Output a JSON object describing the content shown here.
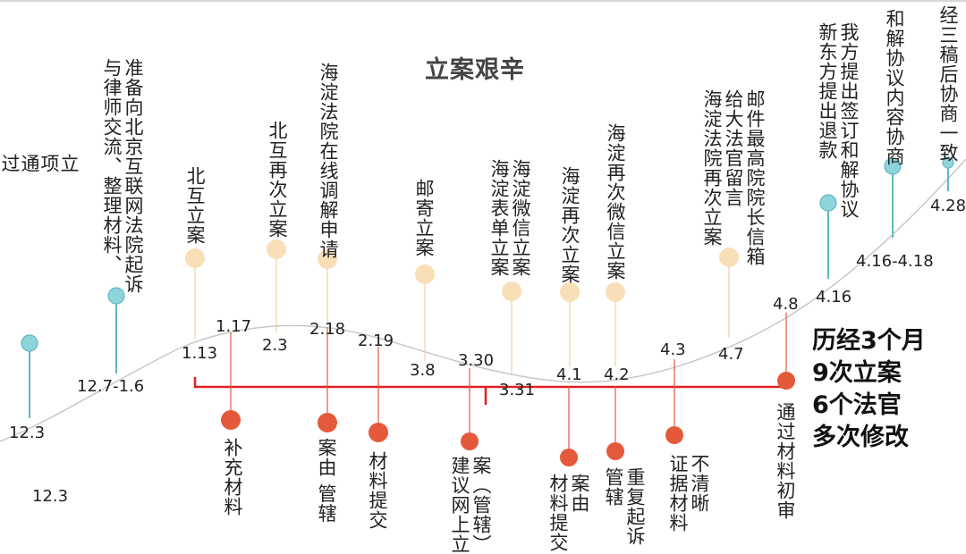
{
  "title": "立案艰辛",
  "summary": [
    "历经3个月",
    "9次立案",
    "6个法官",
    "多次修改"
  ],
  "colors": {
    "teal": "#8ed4db",
    "teal_line": "#5fb8c2",
    "beige": "#f8dfb8",
    "beige_line": "#f2cfa0",
    "orange": "#e5593b",
    "orange_line": "#e05a3f",
    "curve": "#c8c8c8",
    "bracket": "#e02020"
  },
  "top_events": [
    {
      "text": "立\n项\n通\n过",
      "color": "teal"
    },
    {
      "text": "准备向北京互联网法院起诉\n与律师交流、整理材料、",
      "color": "teal"
    },
    {
      "text": "北互立案",
      "color": "beige"
    },
    {
      "text": "北互再次立案",
      "color": "beige"
    },
    {
      "text": "海淀法院在线调解申请",
      "color": "beige"
    },
    {
      "text": "邮寄立案",
      "color": "beige"
    },
    {
      "text": "海淀微信立案\n海淀表单立案",
      "color": "beige"
    },
    {
      "text": "海淀再次立案",
      "color": "beige"
    },
    {
      "text": "海淀再次微信立案",
      "color": "beige"
    },
    {
      "text": "邮件最高院院长信箱\n给大法官留言\n海淀法院再次立案",
      "color": "beige"
    },
    {
      "text": "我方提出签订和解协议\n新东方提出退款",
      "color": "teal"
    },
    {
      "text": "和解协议内容协商",
      "color": "teal"
    },
    {
      "text": "经三稿后协商一致",
      "color": "teal"
    }
  ],
  "bottom_events": [
    {
      "text": "补充材料"
    },
    {
      "text": "案由 管辖"
    },
    {
      "text": "材料提交"
    },
    {
      "text": "案（管辖）\n建议网上立"
    },
    {
      "text": "案由\n材料提交"
    },
    {
      "text": "重复起诉\n管辖"
    },
    {
      "text": "不清晰\n证据材料"
    },
    {
      "text": "通过材料初审"
    }
  ],
  "dates": [
    "12.3",
    "12.3",
    "12.7-1.6",
    "1.13",
    "1.17",
    "2.3",
    "2.18",
    "2.19",
    "3.8",
    "3.30",
    "3.31",
    "4.1",
    "4.2",
    "4.3",
    "4.7",
    "4.8",
    "4.16",
    "4.16-4.18",
    "4.28"
  ]
}
